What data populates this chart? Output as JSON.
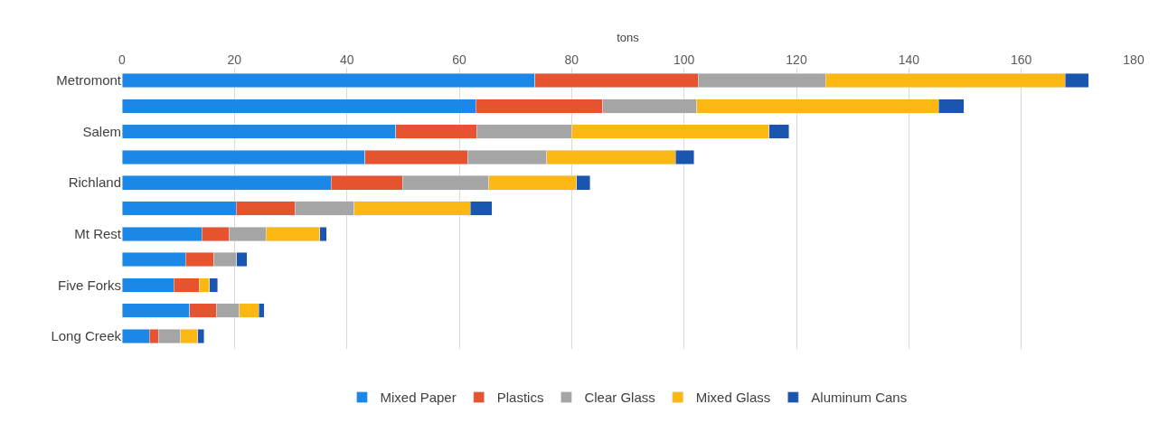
{
  "chart_data": {
    "type": "bar",
    "orientation": "horizontal",
    "stacked": true,
    "xlabel": "tons",
    "categories": [
      "Metromont",
      null,
      "Salem",
      null,
      "Richland",
      null,
      "Mt Rest",
      null,
      "Five Forks",
      null,
      "Long Creek"
    ],
    "series": [
      {
        "name": "Mixed Paper",
        "color": "#1b87e6",
        "values": [
          73.5,
          62.9,
          48.7,
          43.2,
          37.2,
          20.3,
          14.2,
          11.3,
          9.2,
          12.0,
          4.9
        ]
      },
      {
        "name": "Plastics",
        "color": "#e5532f",
        "values": [
          29.0,
          22.6,
          14.4,
          18.3,
          12.7,
          10.5,
          4.9,
          5.1,
          4.5,
          4.8,
          1.6
        ]
      },
      {
        "name": "Clear Glass",
        "color": "#a5a5a5",
        "values": [
          22.7,
          16.8,
          16.9,
          14.1,
          15.4,
          10.5,
          6.5,
          4.0,
          null,
          4.1,
          3.9
        ]
      },
      {
        "name": "Mixed Glass",
        "color": "#fbb812",
        "values": [
          42.6,
          43.0,
          35.1,
          22.9,
          15.6,
          20.7,
          9.6,
          null,
          1.9,
          3.4,
          3.1
        ]
      },
      {
        "name": "Aluminum Cans",
        "color": "#1a55b0",
        "values": [
          4.2,
          4.5,
          3.6,
          3.3,
          2.4,
          3.8,
          1.2,
          1.8,
          1.4,
          1.0,
          1.1
        ]
      }
    ],
    "xlim": [
      0,
      180
    ],
    "xticks": [
      0,
      20,
      40,
      60,
      80,
      100,
      120,
      140,
      160,
      180
    ],
    "grid": "x",
    "legend": "bottom"
  }
}
